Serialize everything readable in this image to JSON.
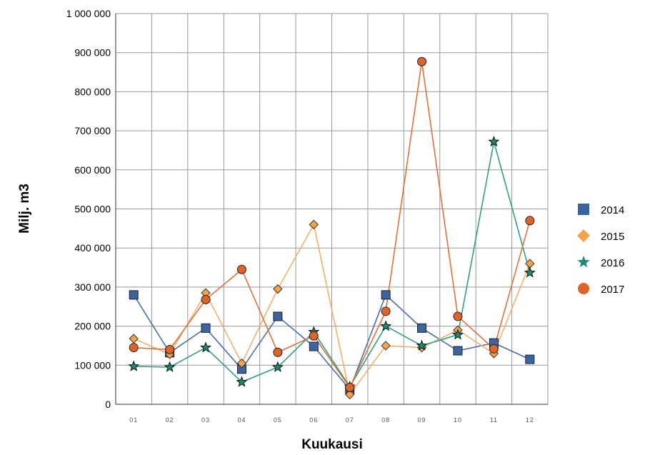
{
  "chart_data": {
    "type": "line",
    "title": "",
    "xlabel": "Kuukausi",
    "ylabel": "Milj. m3",
    "categories": [
      "01",
      "02",
      "03",
      "04",
      "05",
      "06",
      "07",
      "08",
      "09",
      "10",
      "11",
      "12"
    ],
    "ylim": [
      0,
      1000000
    ],
    "yticks": [
      0,
      100000,
      200000,
      300000,
      400000,
      500000,
      600000,
      700000,
      800000,
      900000,
      1000000
    ],
    "ytick_labels": [
      "0",
      "100 000",
      "200 000",
      "300 000",
      "400 000",
      "500 000",
      "600 000",
      "700 000",
      "800 000",
      "900 000",
      "1 000 000"
    ],
    "grid": true,
    "legend_position": "right",
    "series": [
      {
        "name": "2014",
        "marker": "square",
        "color": "#4a6fa5",
        "marker_color": "#3b64a3",
        "values": [
          280000,
          132000,
          195000,
          90000,
          225000,
          148000,
          38000,
          280000,
          195000,
          137000,
          157000,
          115000
        ]
      },
      {
        "name": "2015",
        "marker": "diamond",
        "color": "#f2b06b",
        "marker_color": "#f5a24a",
        "values": [
          168000,
          128000,
          285000,
          105000,
          295000,
          460000,
          25000,
          150000,
          145000,
          190000,
          130000,
          360000
        ]
      },
      {
        "name": "2016",
        "marker": "star",
        "color": "#2f9e8a",
        "marker_color": "#1a8c70",
        "values": [
          97000,
          95000,
          145000,
          57000,
          95000,
          185000,
          45000,
          200000,
          150000,
          178000,
          672000,
          337000
        ]
      },
      {
        "name": "2017",
        "marker": "circle",
        "color": "#e0703a",
        "marker_color": "#e0632a",
        "values": [
          145000,
          140000,
          268000,
          345000,
          133000,
          175000,
          43000,
          238000,
          877000,
          225000,
          142000,
          470000
        ]
      }
    ]
  }
}
